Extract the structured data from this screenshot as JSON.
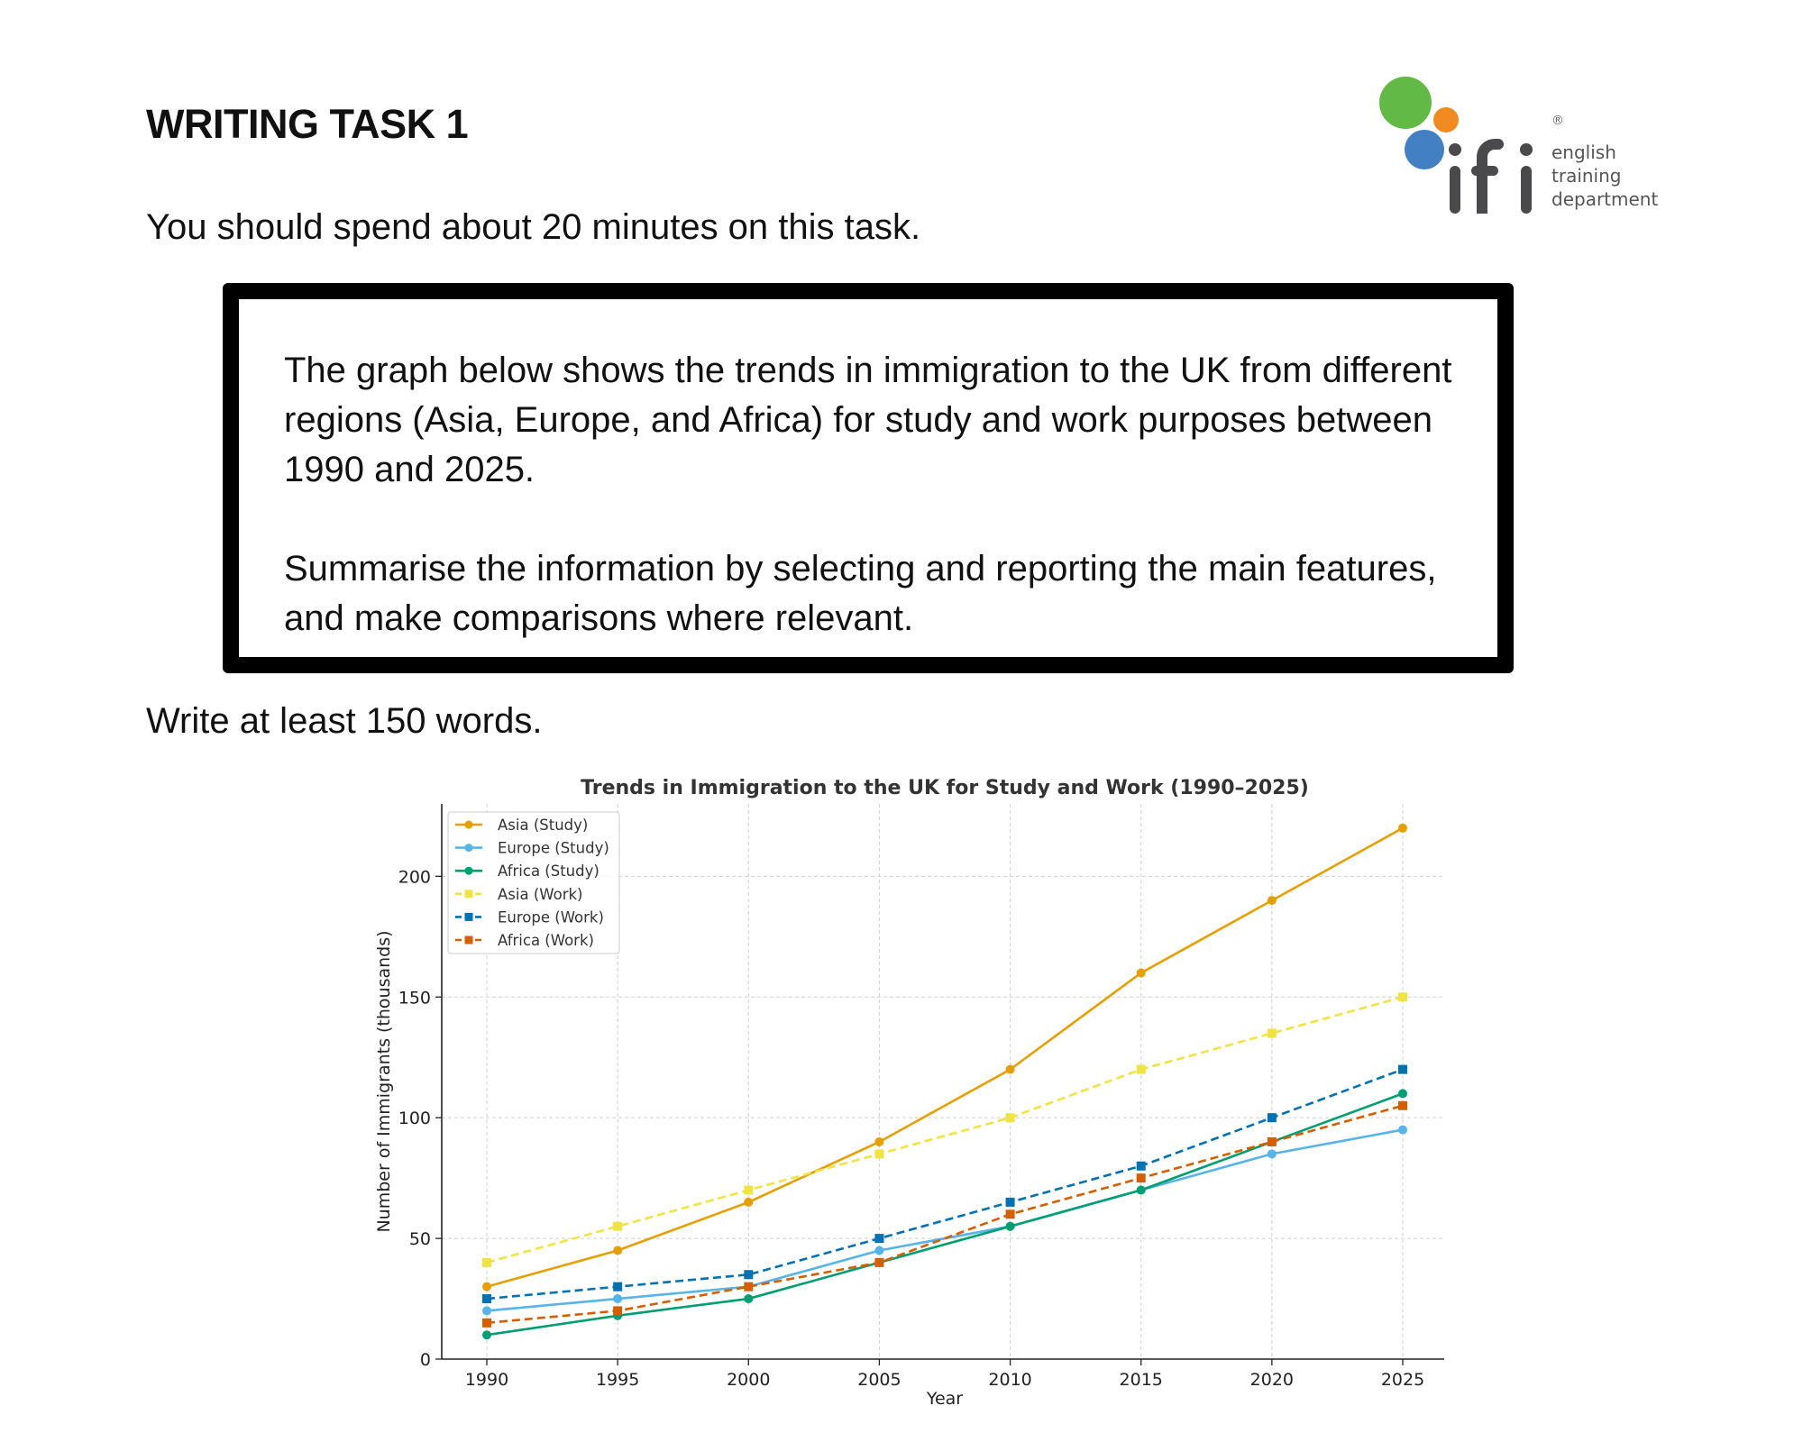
{
  "header": {
    "title": "WRITING TASK 1",
    "logo": {
      "brand": "ifi",
      "tagline": [
        "english",
        "training",
        "department"
      ],
      "registered": "®"
    }
  },
  "instructions": {
    "time": "You should spend about 20 minutes on this task.",
    "prompt_1": "The graph below shows the trends in immigration to the UK from different regions (Asia, Europe, and Africa) for study and work purposes between 1990 and 2025.",
    "prompt_2": "Summarise the information by selecting and reporting the main features, and make comparisons where relevant.",
    "min_words": "Write at least 150 words."
  },
  "chart_data": {
    "type": "line",
    "title": "Trends in Immigration to the UK for Study and Work (1990–2025)",
    "xlabel": "Year",
    "ylabel": "Number of Immigrants (thousands)",
    "x": [
      1990,
      1995,
      2000,
      2005,
      2010,
      2015,
      2020,
      2025
    ],
    "xticks": [
      "1990",
      "1995",
      "2000",
      "2005",
      "2010",
      "2015",
      "2020",
      "2025"
    ],
    "yticks": [
      "0",
      "50",
      "100",
      "150",
      "200"
    ],
    "ylim": [
      0,
      230
    ],
    "grid": true,
    "legend_position": "top-left",
    "series": [
      {
        "name": "Asia (Study)",
        "color": "#E69F00",
        "style": "solid",
        "marker": "circle",
        "values": [
          30,
          45,
          65,
          90,
          120,
          160,
          190,
          220
        ]
      },
      {
        "name": "Europe (Study)",
        "color": "#56B4E9",
        "style": "solid",
        "marker": "circle",
        "values": [
          20,
          25,
          30,
          45,
          55,
          70,
          85,
          95
        ]
      },
      {
        "name": "Africa (Study)",
        "color": "#009E73",
        "style": "solid",
        "marker": "circle",
        "values": [
          10,
          18,
          25,
          40,
          55,
          70,
          90,
          110
        ]
      },
      {
        "name": "Asia (Work)",
        "color": "#F0E442",
        "style": "dashed",
        "marker": "square",
        "values": [
          40,
          55,
          70,
          85,
          100,
          120,
          135,
          150
        ]
      },
      {
        "name": "Europe (Work)",
        "color": "#0072B2",
        "style": "dashed",
        "marker": "square",
        "values": [
          25,
          30,
          35,
          50,
          65,
          80,
          100,
          120
        ]
      },
      {
        "name": "Africa (Work)",
        "color": "#D55E00",
        "style": "dashed",
        "marker": "square",
        "values": [
          15,
          20,
          30,
          40,
          60,
          75,
          90,
          105
        ]
      }
    ]
  }
}
